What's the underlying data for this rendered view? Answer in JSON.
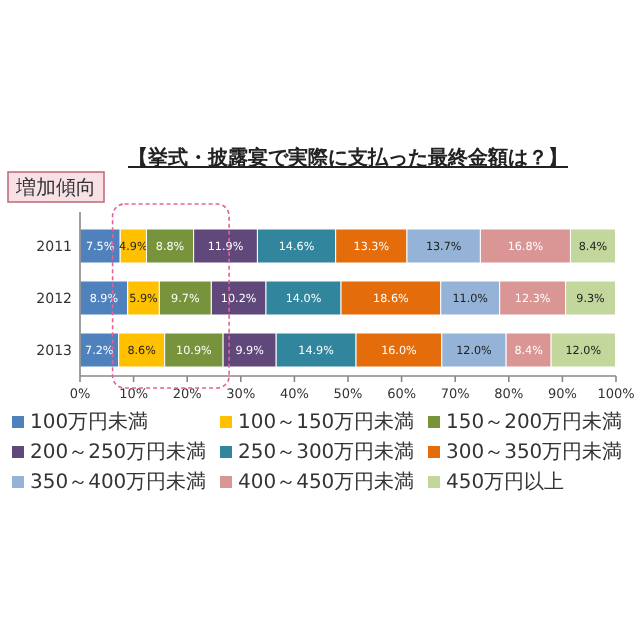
{
  "chart_data": {
    "type": "bar",
    "orientation": "horizontal",
    "stacked": true,
    "title": "【挙式・披露宴で実際に支払った最終金額は？】",
    "annotations": [
      "増加傾向"
    ],
    "categories": [
      "2011",
      "2012",
      "2013"
    ],
    "series": [
      {
        "name": "100万円未満",
        "color": "#4f81bd",
        "values": [
          7.5,
          8.9,
          7.2
        ],
        "value_labels": [
          "7.5%",
          "8.9%",
          "7.2%"
        ]
      },
      {
        "name": "100～150万円未満",
        "color": "#ffc000",
        "values": [
          4.9,
          5.9,
          8.6
        ],
        "value_labels": [
          "4.9%",
          "5.9%",
          "8.6%"
        ]
      },
      {
        "name": "150～200万円未満",
        "color": "#77933c",
        "values": [
          8.8,
          9.7,
          10.9
        ],
        "value_labels": [
          "8.8%",
          "9.7%",
          "10.9%"
        ]
      },
      {
        "name": "200～250万円未満",
        "color": "#60497a",
        "values": [
          11.9,
          10.2,
          9.9
        ],
        "value_labels": [
          "11.9%",
          "10.2%",
          "9.9%"
        ]
      },
      {
        "name": "250～300万円未満",
        "color": "#31859c",
        "values": [
          14.6,
          14.0,
          14.9
        ],
        "value_labels": [
          "14.6%",
          "14.0%",
          "14.9%"
        ]
      },
      {
        "name": "300～350万円未満",
        "color": "#e46c0a",
        "values": [
          13.3,
          18.6,
          16.0
        ],
        "value_labels": [
          "13.3%",
          "18.6%",
          "16.0%"
        ]
      },
      {
        "name": "350～400万円未満",
        "color": "#95b3d7",
        "values": [
          13.7,
          11.0,
          12.0
        ],
        "value_labels": [
          "13.7%",
          "11.0%",
          "12.0%"
        ]
      },
      {
        "name": "400～450万円未満",
        "color": "#d99694",
        "values": [
          16.8,
          12.3,
          8.4
        ],
        "value_labels": [
          "16.8%",
          "12.3%",
          "8.4%"
        ]
      },
      {
        "name": "450万円以上",
        "color": "#c3d69b",
        "values": [
          8.4,
          9.3,
          12.0
        ],
        "value_labels": [
          "8.4%",
          "9.3%",
          "12.0%"
        ]
      }
    ],
    "xlim": [
      0,
      100
    ],
    "xticks": [
      {
        "value": 0,
        "label": "0%"
      },
      {
        "value": 10,
        "label": "10%"
      },
      {
        "value": 20,
        "label": "20%"
      },
      {
        "value": 30,
        "label": "30%"
      },
      {
        "value": 40,
        "label": "40%"
      },
      {
        "value": 50,
        "label": "50%"
      },
      {
        "value": 60,
        "label": "60%"
      },
      {
        "value": 70,
        "label": "70%"
      },
      {
        "value": 80,
        "label": "80%"
      },
      {
        "value": 90,
        "label": "90%"
      },
      {
        "value": 100,
        "label": "100%"
      }
    ],
    "legend": "bottom"
  }
}
